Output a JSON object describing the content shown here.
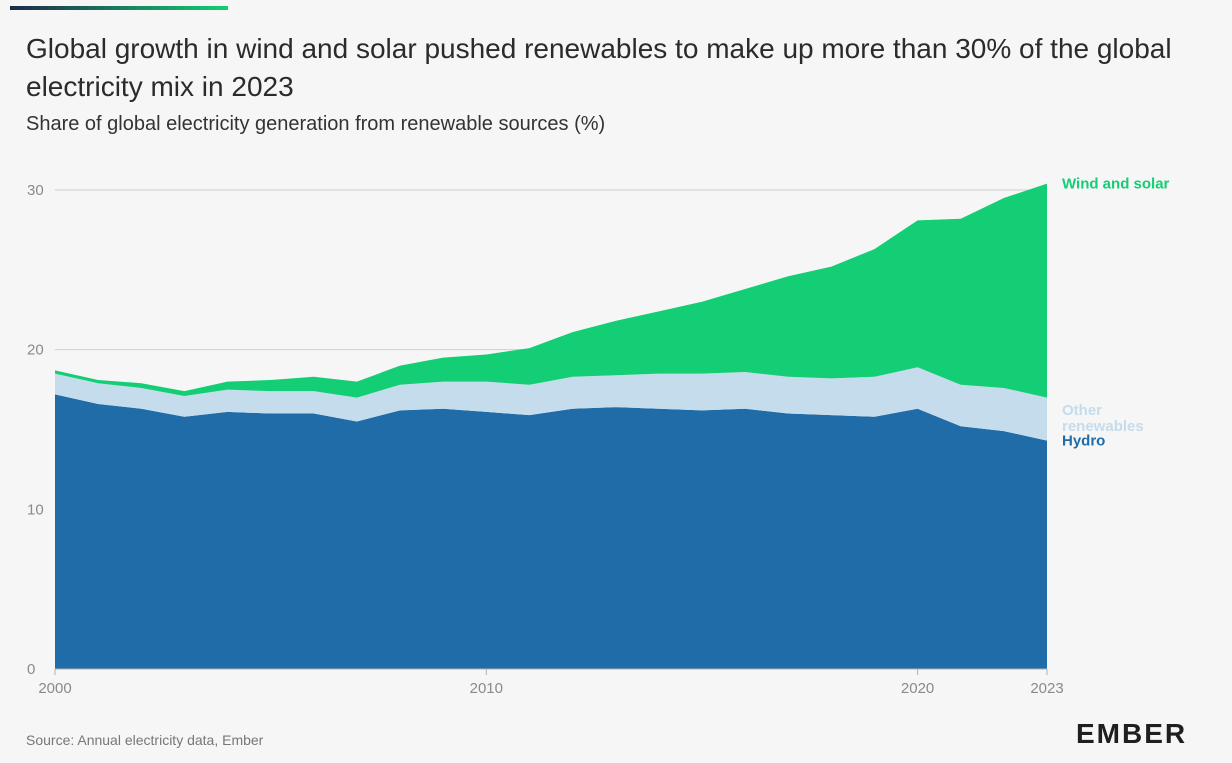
{
  "title": "Global growth in wind and solar pushed renewables to make up more than 30% of the global electricity mix in 2023",
  "subtitle": "Share of global electricity generation from renewable sources (%)",
  "source": "Source: Annual electricity data, Ember",
  "logo_text": "EMBER",
  "colors": {
    "accent_start": "#1e2a4a",
    "accent_end": "#13ce74",
    "hydro": "#1f6ca8",
    "other": "#c5dcec",
    "wind_solar": "#13ce74",
    "grid": "#cfcfcf",
    "axis_text": "#8a8a8a"
  },
  "chart_data": {
    "type": "area",
    "stacked": true,
    "x": [
      2000,
      2001,
      2002,
      2003,
      2004,
      2005,
      2006,
      2007,
      2008,
      2009,
      2010,
      2011,
      2012,
      2013,
      2014,
      2015,
      2016,
      2017,
      2018,
      2019,
      2020,
      2021,
      2022,
      2023
    ],
    "series": [
      {
        "name": "Hydro",
        "values": [
          17.2,
          16.6,
          16.3,
          15.8,
          16.1,
          16.0,
          16.0,
          15.5,
          16.2,
          16.3,
          16.1,
          15.9,
          16.3,
          16.4,
          16.3,
          16.2,
          16.3,
          16.0,
          15.9,
          15.8,
          16.3,
          15.2,
          14.9,
          14.3
        ]
      },
      {
        "name": "Other renewables",
        "values": [
          1.3,
          1.3,
          1.3,
          1.3,
          1.4,
          1.4,
          1.4,
          1.5,
          1.6,
          1.7,
          1.9,
          1.9,
          2.0,
          2.0,
          2.2,
          2.3,
          2.3,
          2.3,
          2.3,
          2.5,
          2.6,
          2.6,
          2.7,
          2.7
        ]
      },
      {
        "name": "Wind and solar",
        "values": [
          0.2,
          0.2,
          0.3,
          0.3,
          0.5,
          0.7,
          0.9,
          1.0,
          1.2,
          1.5,
          1.7,
          2.3,
          2.8,
          3.4,
          3.9,
          4.5,
          5.2,
          6.3,
          7.0,
          8.0,
          9.2,
          10.4,
          11.9,
          13.4
        ]
      }
    ],
    "ylim": [
      0,
      32
    ],
    "yticks": [
      0,
      10,
      20,
      30
    ],
    "xticks": [
      2000,
      2010,
      2020,
      2023
    ],
    "grid": true,
    "legend": "direct labels at right end"
  }
}
